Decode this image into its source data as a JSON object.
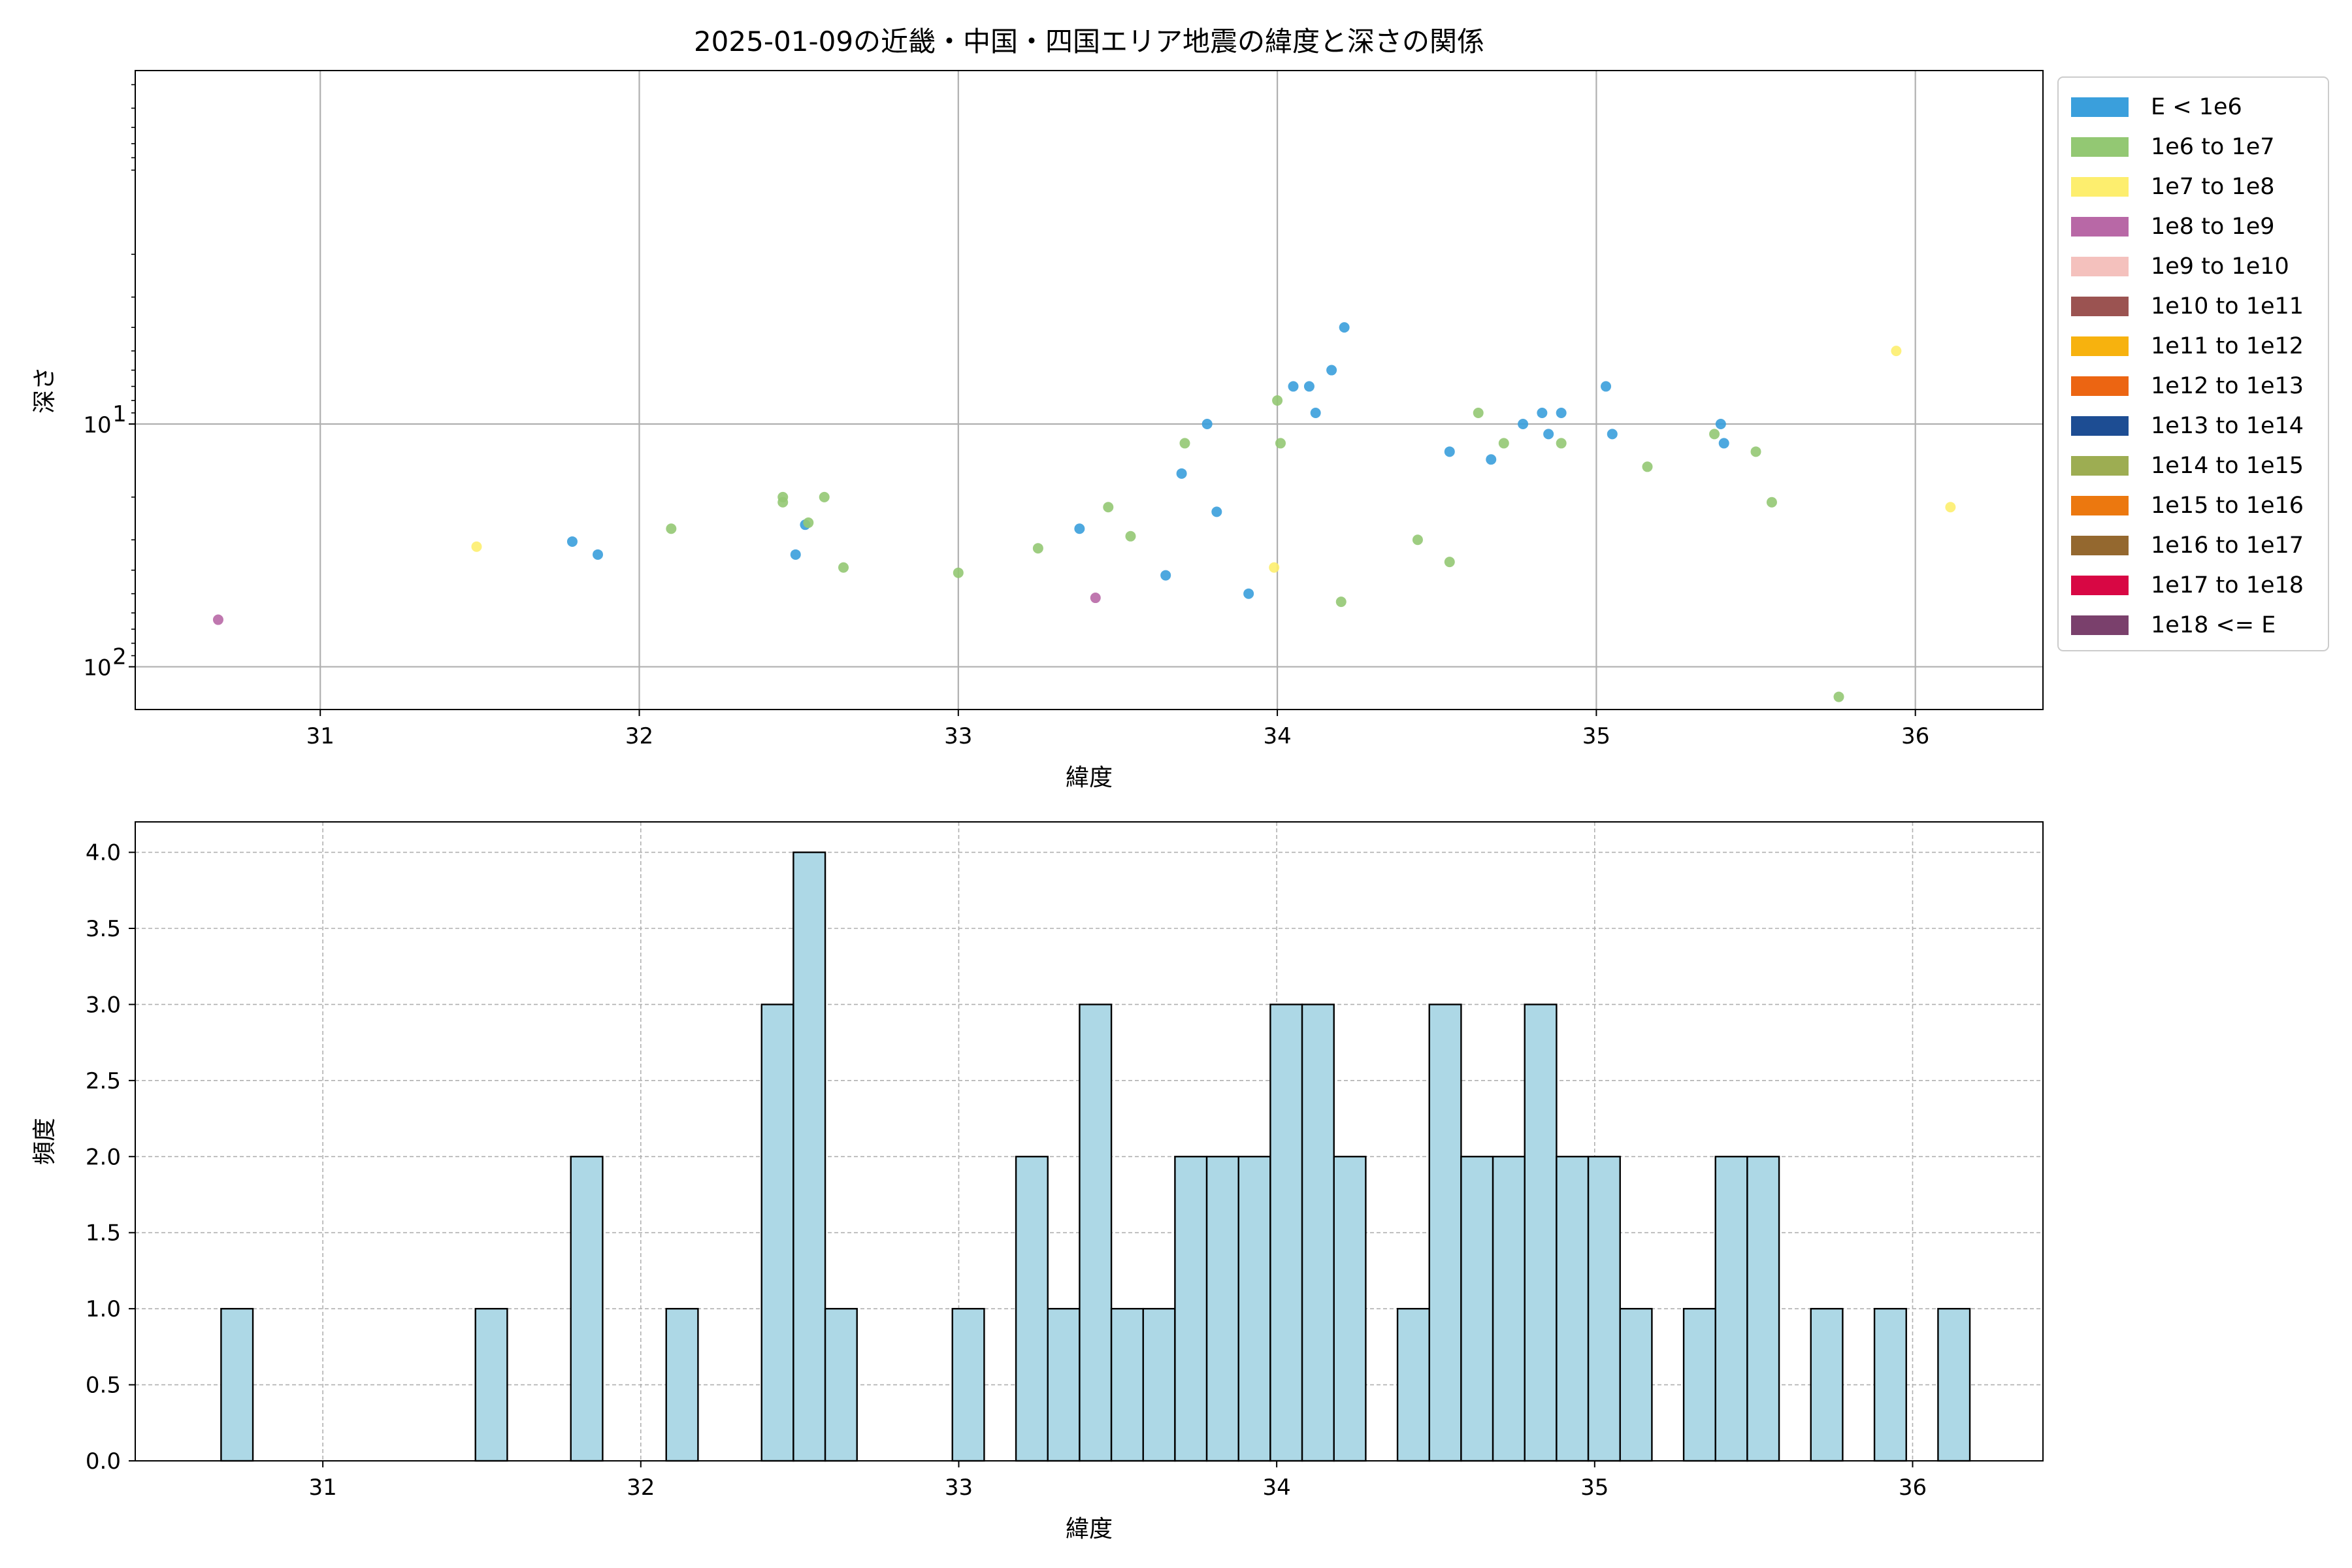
{
  "chart_data": [
    {
      "type": "scatter",
      "title": "2025-01-09の近畿・中国・四国エリア地震の緯度と深さの関係",
      "xlabel": "緯度",
      "ylabel": "深さ",
      "xlim": [
        30.42,
        36.4
      ],
      "ylim": [
        150,
        0.35
      ],
      "yscale": "log",
      "y_inverted": true,
      "xticks": [
        31,
        32,
        33,
        34,
        35,
        36
      ],
      "xtick_labels": [
        "31",
        "32",
        "33",
        "34",
        "35",
        "36"
      ],
      "yticks": [
        {
          "value": 10,
          "base": "10",
          "exp": "1"
        },
        {
          "value": 100,
          "base": "10",
          "exp": "2"
        }
      ],
      "grid": true,
      "legend_position": "outside-right",
      "series": [
        {
          "name": "E < 1e6",
          "color": "#3a9fdc",
          "points": [
            [
              31.79,
              30.5
            ],
            [
              31.87,
              34.5
            ],
            [
              32.49,
              34.5
            ],
            [
              32.52,
              26.0
            ],
            [
              33.38,
              27.0
            ],
            [
              33.65,
              42.0
            ],
            [
              33.7,
              16.0
            ],
            [
              33.78,
              10.0
            ],
            [
              33.81,
              23.0
            ],
            [
              33.91,
              50.0
            ],
            [
              34.05,
              7.0
            ],
            [
              34.1,
              7.0
            ],
            [
              34.12,
              9.0
            ],
            [
              34.17,
              6.0
            ],
            [
              34.21,
              4.0
            ],
            [
              34.54,
              13.0
            ],
            [
              34.67,
              14.0
            ],
            [
              34.77,
              10.0
            ],
            [
              34.83,
              9.0
            ],
            [
              34.85,
              11.0
            ],
            [
              34.89,
              9.0
            ],
            [
              35.03,
              7.0
            ],
            [
              35.05,
              11.0
            ],
            [
              35.39,
              10.0
            ],
            [
              35.4,
              12.0
            ]
          ]
        },
        {
          "name": "1e6 to 1e7",
          "color": "#93c873",
          "points": [
            [
              32.1,
              27.0
            ],
            [
              32.45,
              20.0
            ],
            [
              32.45,
              21.0
            ],
            [
              32.53,
              25.5
            ],
            [
              32.58,
              20.0
            ],
            [
              32.64,
              39.0
            ],
            [
              33.0,
              41.0
            ],
            [
              33.25,
              32.5
            ],
            [
              33.47,
              22.0
            ],
            [
              33.54,
              29.0
            ],
            [
              33.71,
              12.0
            ],
            [
              34.0,
              8.0
            ],
            [
              34.01,
              12.0
            ],
            [
              34.2,
              54.0
            ],
            [
              34.44,
              30.0
            ],
            [
              34.54,
              37.0
            ],
            [
              34.63,
              9.0
            ],
            [
              34.71,
              12.0
            ],
            [
              34.89,
              12.0
            ],
            [
              35.16,
              15.0
            ],
            [
              35.37,
              11.0
            ],
            [
              35.5,
              13.0
            ],
            [
              35.55,
              21.0
            ],
            [
              35.76,
              133.0
            ]
          ]
        },
        {
          "name": "1e7 to 1e8",
          "color": "#fdee6e",
          "points": [
            [
              31.49,
              32.0
            ],
            [
              33.99,
              39.0
            ],
            [
              35.94,
              5.0
            ],
            [
              36.11,
              22.0
            ]
          ]
        },
        {
          "name": "1e8 to 1e9",
          "color": "#b868a6",
          "points": [
            [
              30.68,
              64.0
            ],
            [
              33.43,
              52.0
            ]
          ]
        },
        {
          "name": "1e9 to 1e10",
          "color": "#f4c1bd",
          "points": []
        },
        {
          "name": "1e10 to 1e11",
          "color": "#9b5351",
          "points": []
        },
        {
          "name": "1e11 to 1e12",
          "color": "#f7b20e",
          "points": []
        },
        {
          "name": "1e12 to 1e13",
          "color": "#ec6512",
          "points": []
        },
        {
          "name": "1e13 to 1e14",
          "color": "#1d4d93",
          "points": []
        },
        {
          "name": "1e14 to 1e15",
          "color": "#9dad52",
          "points": []
        },
        {
          "name": "1e15 to 1e16",
          "color": "#ec780f",
          "points": []
        },
        {
          "name": "1e16 to 1e17",
          "color": "#94682f",
          "points": []
        },
        {
          "name": "1e17 to 1e18",
          "color": "#d80744",
          "points": []
        },
        {
          "name": "1e18 <= E",
          "color": "#7a406c",
          "points": []
        }
      ]
    },
    {
      "type": "bar",
      "subtype": "histogram",
      "xlabel": "緯度",
      "ylabel": "頻度",
      "xlim": [
        30.41,
        36.41
      ],
      "ylim": [
        0,
        4.2
      ],
      "xticks": [
        31,
        32,
        33,
        34,
        35,
        36
      ],
      "xtick_labels": [
        "31",
        "32",
        "33",
        "34",
        "35",
        "36"
      ],
      "yticks": [
        0,
        0.5,
        1,
        1.5,
        2,
        2.5,
        3,
        3.5,
        4
      ],
      "ytick_labels": [
        "0.0",
        "0.5",
        "1.0",
        "1.5",
        "2.0",
        "2.5",
        "3.0",
        "3.5",
        "4.0"
      ],
      "grid": true,
      "bar_color": "#add8e6",
      "edge_color": "#000000",
      "bin_start": 30.68,
      "bin_width": 0.1,
      "values": [
        1,
        0,
        0,
        0,
        0,
        0,
        0,
        0,
        1,
        0,
        0,
        2,
        0,
        0,
        1,
        0,
        0,
        3,
        4,
        1,
        0,
        0,
        0,
        1,
        0,
        2,
        1,
        3,
        1,
        1,
        2,
        2,
        2,
        3,
        3,
        2,
        0,
        1,
        3,
        2,
        2,
        3,
        2,
        2,
        1,
        0,
        1,
        2,
        2,
        0,
        1,
        0,
        1,
        0,
        1
      ]
    }
  ]
}
